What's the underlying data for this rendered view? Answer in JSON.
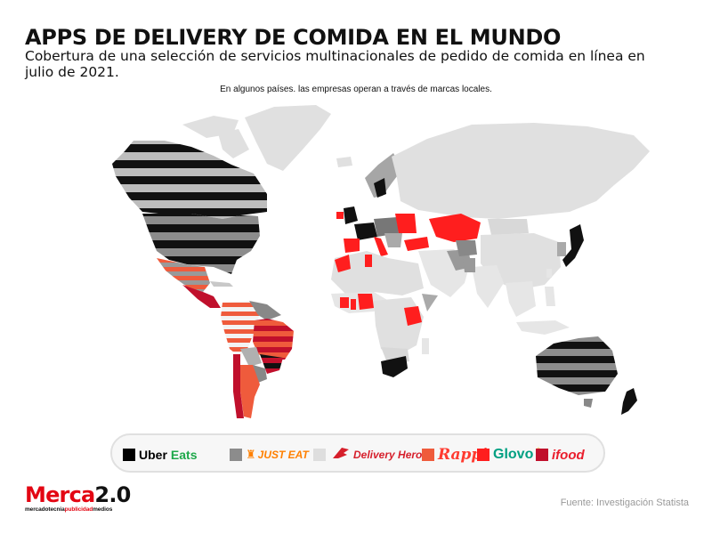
{
  "header": {
    "title": "APPS DE DELIVERY DE COMIDA EN EL MUNDO",
    "subtitle": "Cobertura de una selección de servicios multinacionales de pedido de comida en línea en julio de 2021.",
    "note": "En algunos países. las empresas  operan a través de marcas locales."
  },
  "colors": {
    "uber_eats": "#000000",
    "just_eat": "#8c8c8c",
    "delivery_hero": "#dedede",
    "rappi": "#ef5b3c",
    "glovo": "#ff1e1e",
    "ifood": "#c0102c",
    "no_data": "#e0e0e0"
  },
  "legend": {
    "items": [
      {
        "name": "Uber Eats",
        "parts": [
          "Uber",
          "Eats"
        ],
        "color": "#000000",
        "icon": "square-swatch"
      },
      {
        "name": "Just Eat",
        "parts": [
          "JUST EAT"
        ],
        "color": "#8c8c8c",
        "icon": "just-eat-hat-icon"
      },
      {
        "name": "Delivery Hero",
        "parts": [
          "Delivery Hero"
        ],
        "color": "#dedede",
        "icon": "delivery-hero-icon"
      },
      {
        "name": "Rappi",
        "parts": [
          "Rappi"
        ],
        "color": "#ef5b3c",
        "icon": "square-swatch"
      },
      {
        "name": "Glovo",
        "parts": [
          "Glovo"
        ],
        "color": "#ff1e1e",
        "icon": "pin-icon"
      },
      {
        "name": "iFood",
        "parts": [
          "ifood"
        ],
        "color": "#c0102c",
        "icon": "square-swatch"
      }
    ]
  },
  "footer": {
    "logo_main": "Merca2.0",
    "logo_tag_parts": [
      "mercadotecnia",
      "publicidad",
      "medios"
    ],
    "source": "Fuente: Investigación Statista"
  }
}
